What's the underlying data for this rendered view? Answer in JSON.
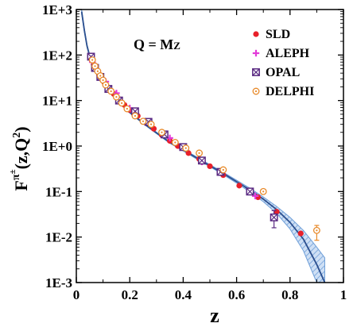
{
  "chart_data": {
    "type": "scatter",
    "xlabel": "z",
    "ylabel": "F^π±(z,Q²)",
    "ylabel_parts": {
      "base": "F",
      "sup": "π",
      "supsup": "±",
      "args": "(z,Q",
      "args_sup": "2",
      "args_end": ")"
    },
    "annotation": {
      "main": "Q = M",
      "sub": "Z"
    },
    "xlim": [
      0,
      1
    ],
    "ylim": [
      0.001,
      1000
    ],
    "y_scale": "log",
    "x_ticks": [
      0,
      0.2,
      0.4,
      0.6,
      0.8,
      1
    ],
    "x_tick_labels": [
      "0",
      "0.2",
      "0.4",
      "0.6",
      "0.8",
      "1"
    ],
    "y_ticks": [
      1000,
      100,
      10,
      1,
      0.1,
      0.01,
      0.001
    ],
    "y_tick_labels": [
      "1E+3",
      "1E+2",
      "1E+1",
      "1E+0",
      "1E-1",
      "1E-2",
      "1E-3"
    ],
    "grid": false,
    "legend_position": "top-right",
    "fit_curve": {
      "x": [
        0.02,
        0.03,
        0.04,
        0.05,
        0.06,
        0.08,
        0.1,
        0.12,
        0.15,
        0.2,
        0.25,
        0.3,
        0.35,
        0.4,
        0.45,
        0.5,
        0.55,
        0.6,
        0.65,
        0.7,
        0.75,
        0.8,
        0.85,
        0.9,
        0.93
      ],
      "y": [
        900,
        350,
        160,
        95,
        68,
        40,
        25,
        17,
        10.5,
        5.5,
        3.2,
        1.95,
        1.2,
        0.82,
        0.55,
        0.37,
        0.25,
        0.165,
        0.108,
        0.068,
        0.04,
        0.021,
        0.009,
        0.0025,
        0.001
      ],
      "band_upper": [
        1000,
        380,
        170,
        100,
        71,
        42,
        26,
        17.6,
        10.9,
        5.7,
        3.3,
        2.02,
        1.25,
        0.86,
        0.58,
        0.39,
        0.265,
        0.177,
        0.118,
        0.076,
        0.047,
        0.027,
        0.014,
        0.006,
        0.0035
      ],
      "band_lower": [
        800,
        320,
        150,
        90,
        65,
        38,
        24,
        16.4,
        10.1,
        5.3,
        3.1,
        1.88,
        1.15,
        0.78,
        0.52,
        0.35,
        0.235,
        0.153,
        0.098,
        0.06,
        0.033,
        0.015,
        0.005,
        0.001,
        0.001
      ],
      "color": "#2b4f8f",
      "band_color": "#6f9fd8"
    },
    "series": [
      {
        "name": "SLD",
        "marker": "filled-circle",
        "color": "#e8202a",
        "x": [
          0.055,
          0.065,
          0.075,
          0.085,
          0.095,
          0.105,
          0.12,
          0.14,
          0.16,
          0.18,
          0.2,
          0.23,
          0.26,
          0.29,
          0.32,
          0.35,
          0.38,
          0.42,
          0.46,
          0.5,
          0.55,
          0.61,
          0.68,
          0.75,
          0.84
        ],
        "y": [
          85,
          62,
          48,
          38,
          30,
          25,
          19,
          14,
          10.5,
          8,
          6.2,
          4.6,
          3.3,
          2.4,
          1.75,
          1.3,
          1.0,
          0.7,
          0.52,
          0.36,
          0.23,
          0.135,
          0.075,
          0.036,
          0.012
        ]
      },
      {
        "name": "ALEPH",
        "marker": "plus",
        "color": "#e23ad8",
        "x": [
          0.06,
          0.08,
          0.11,
          0.15,
          0.2,
          0.27,
          0.35,
          0.47,
          0.67
        ],
        "y": [
          70,
          45,
          26,
          14.5,
          6.8,
          3.3,
          1.5,
          0.45,
          0.08
        ]
      },
      {
        "name": "OPAL",
        "marker": "boxed-x",
        "color": "#5a2a82",
        "x": [
          0.055,
          0.07,
          0.09,
          0.12,
          0.16,
          0.22,
          0.27,
          0.33,
          0.4,
          0.47,
          0.54,
          0.65,
          0.74
        ],
        "y": [
          92,
          52,
          33,
          18,
          10,
          5.8,
          3.4,
          1.8,
          0.95,
          0.48,
          0.27,
          0.1,
          0.027
        ],
        "err_low": [
          null,
          null,
          null,
          null,
          null,
          null,
          null,
          null,
          null,
          null,
          null,
          null,
          0.016
        ],
        "err_high": [
          null,
          null,
          null,
          null,
          null,
          null,
          null,
          null,
          null,
          null,
          null,
          null,
          0.038
        ]
      },
      {
        "name": "DELPHI",
        "marker": "circle-dot",
        "color": "#e88a2a",
        "x": [
          0.06,
          0.07,
          0.08,
          0.09,
          0.1,
          0.11,
          0.13,
          0.15,
          0.17,
          0.19,
          0.22,
          0.25,
          0.28,
          0.32,
          0.37,
          0.41,
          0.46,
          0.55,
          0.7,
          0.9
        ],
        "y": [
          78,
          57,
          44,
          35,
          28,
          22,
          16,
          12,
          8.8,
          6.6,
          4.6,
          3.5,
          3.0,
          2.0,
          1.2,
          0.9,
          0.7,
          0.3,
          0.1,
          0.014
        ],
        "err_low": [
          null,
          null,
          null,
          null,
          null,
          null,
          null,
          null,
          null,
          null,
          null,
          null,
          null,
          null,
          null,
          null,
          null,
          null,
          null,
          0.0085
        ],
        "err_high": [
          null,
          null,
          null,
          null,
          null,
          null,
          null,
          null,
          null,
          null,
          null,
          null,
          null,
          null,
          null,
          null,
          null,
          null,
          null,
          0.018
        ]
      }
    ]
  }
}
